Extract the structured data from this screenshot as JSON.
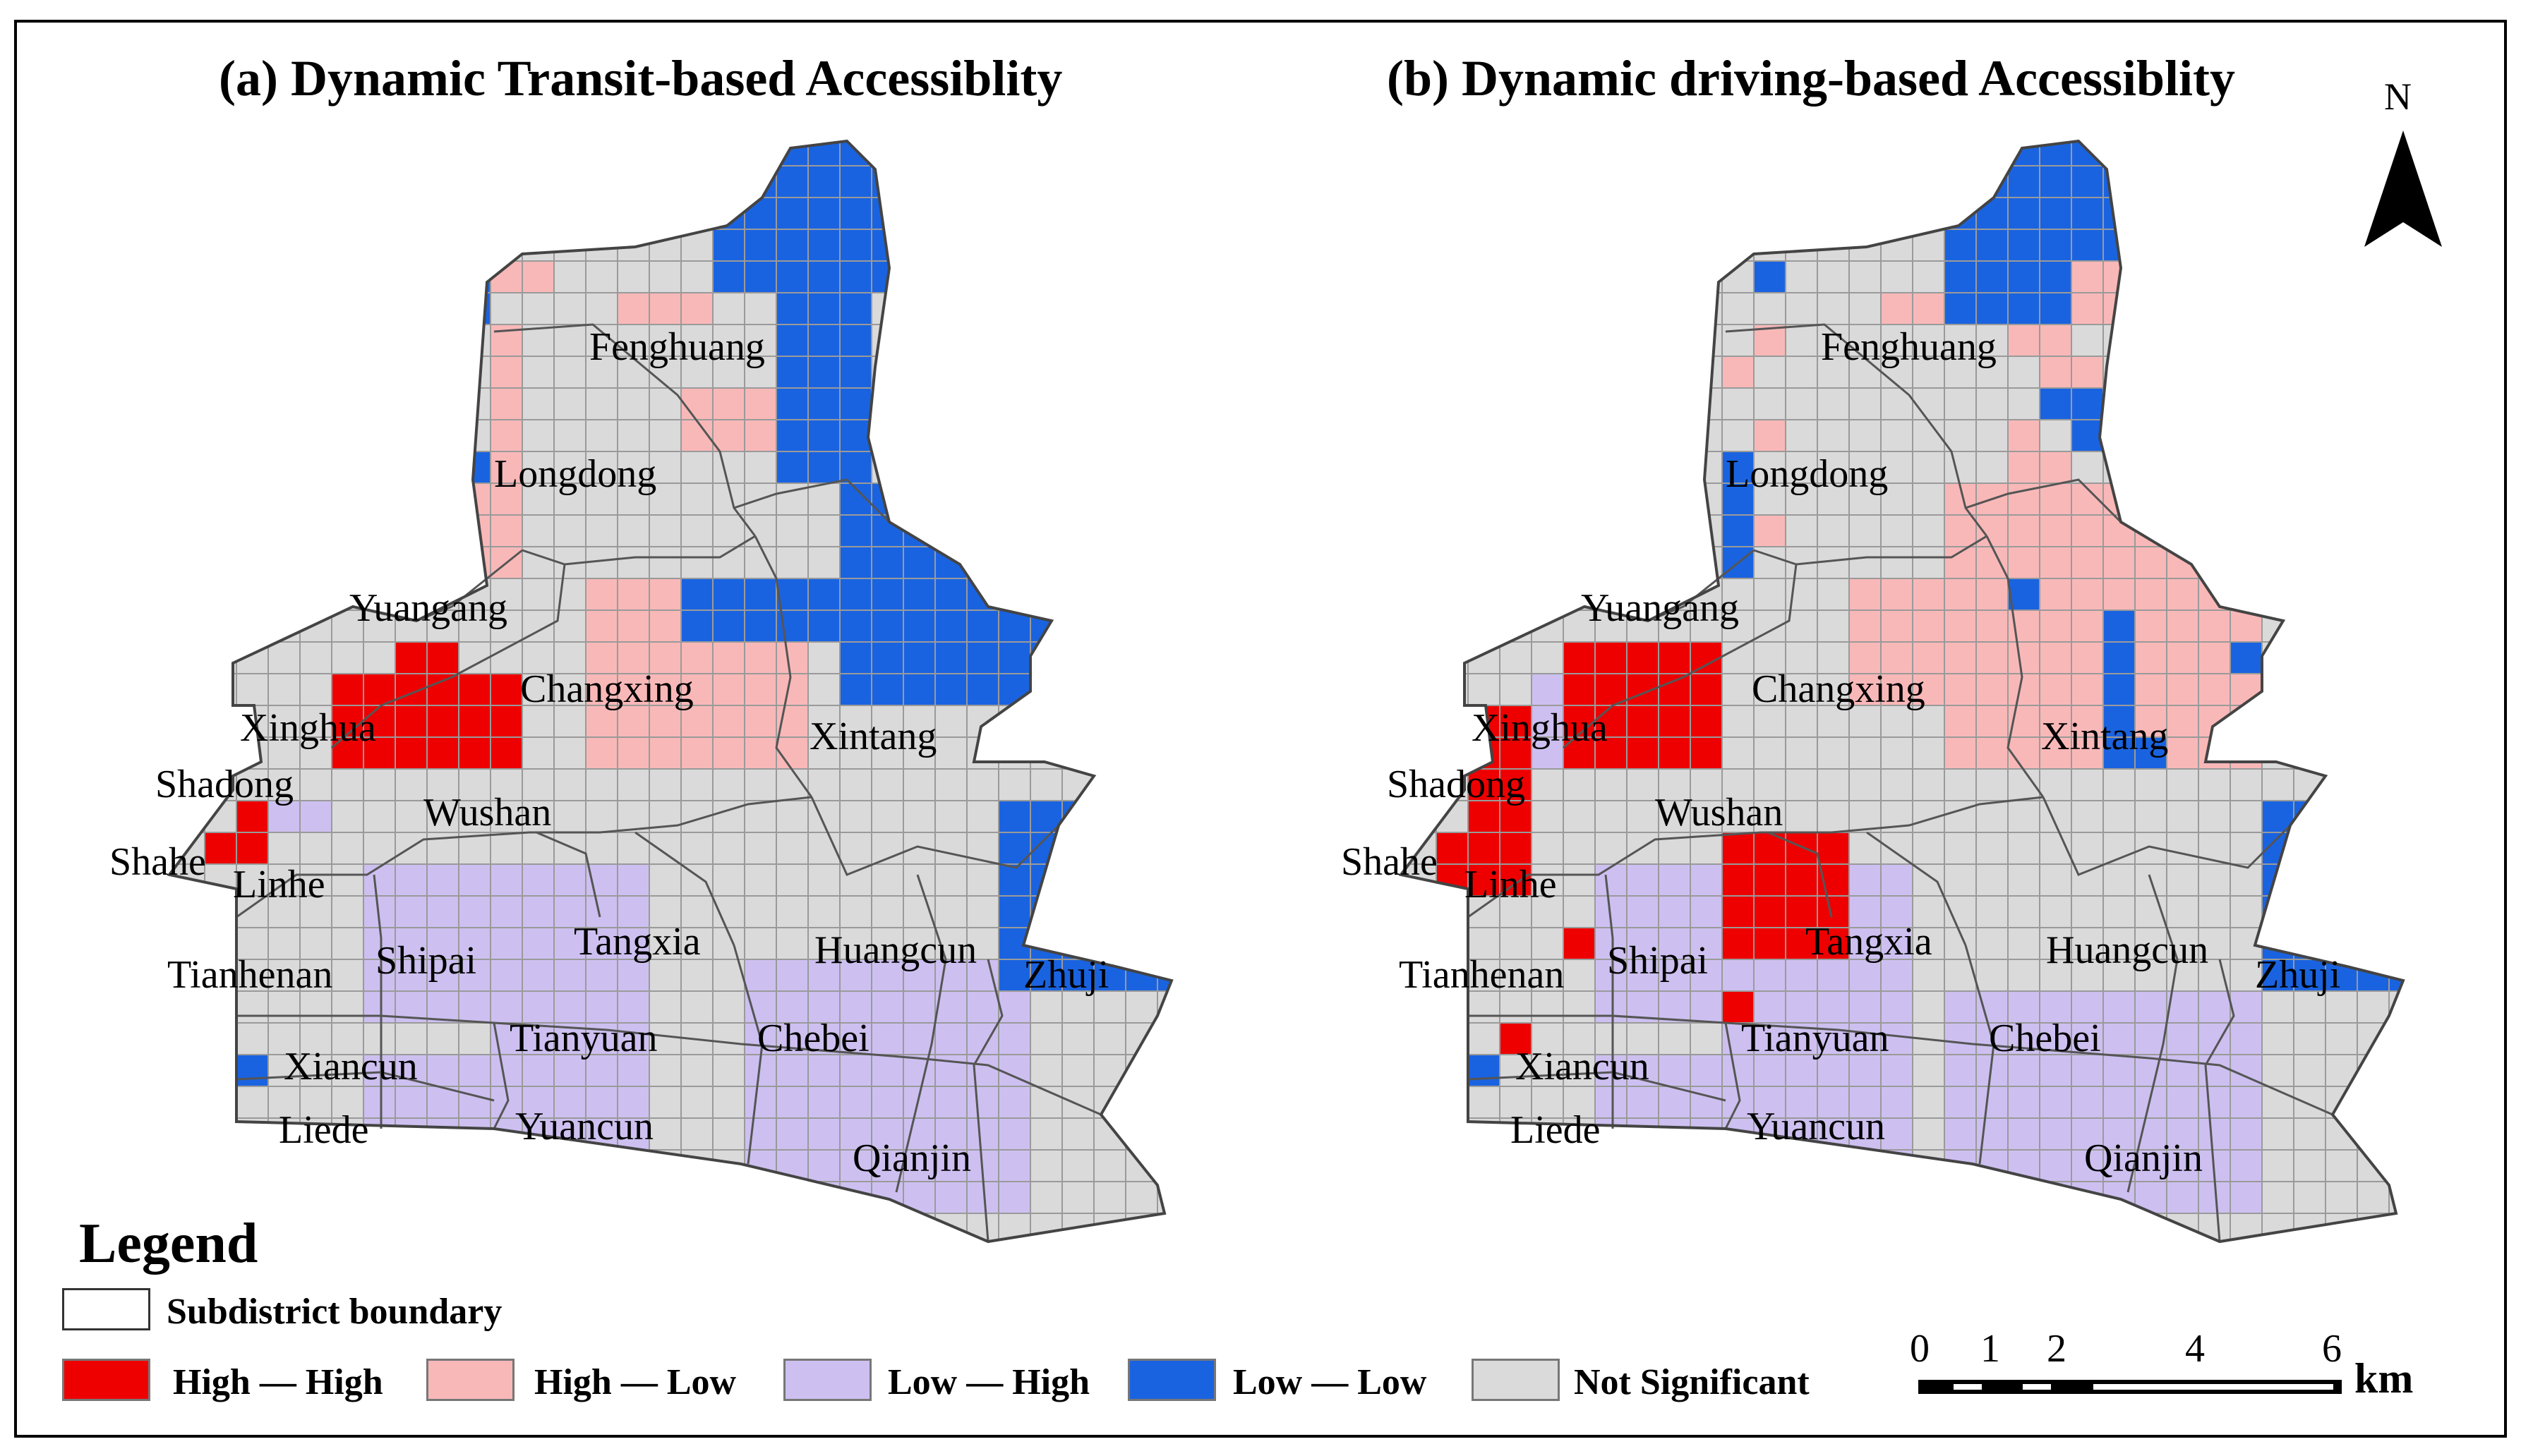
{
  "titles": {
    "a": "(a) Dynamic Transit-based Accessiblity",
    "b": "(b) Dynamic driving-based Accessiblity"
  },
  "colors": {
    "high_high": "#ee0000",
    "high_low": "#f9b8b8",
    "low_high": "#cdc0f0",
    "low_low": "#1a63e0",
    "not_significant": "#dadada",
    "grid": "#9a9a9a",
    "boundary": "#555555"
  },
  "subdistricts": [
    "Fenghuang",
    "Longdong",
    "Yuangang",
    "Changxing",
    "Xinghua",
    "Xintang",
    "Shadong",
    "Wushan",
    "Shahe",
    "Linhe",
    "Tangxia",
    "Huangcun",
    "Tianhenan",
    "Shipai",
    "Zhuji",
    "Tianyuan",
    "Chebei",
    "Xiancun",
    "Liede",
    "Yuancun",
    "Qianjin"
  ],
  "legend": {
    "title": "Legend",
    "boundary_label": "Subdistrict boundary",
    "items": [
      {
        "key": "high_high",
        "label": "High — High"
      },
      {
        "key": "high_low",
        "label": "High — Low"
      },
      {
        "key": "low_high",
        "label": "Low — High"
      },
      {
        "key": "low_low",
        "label": "Low — Low"
      },
      {
        "key": "not_significant",
        "label": "Not Significant"
      }
    ]
  },
  "north_arrow": {
    "label": "N",
    "icon": "north-arrow-icon"
  },
  "scale_bar": {
    "ticks": [
      "0",
      "1",
      "2",
      "4",
      "6"
    ],
    "unit": "km"
  }
}
